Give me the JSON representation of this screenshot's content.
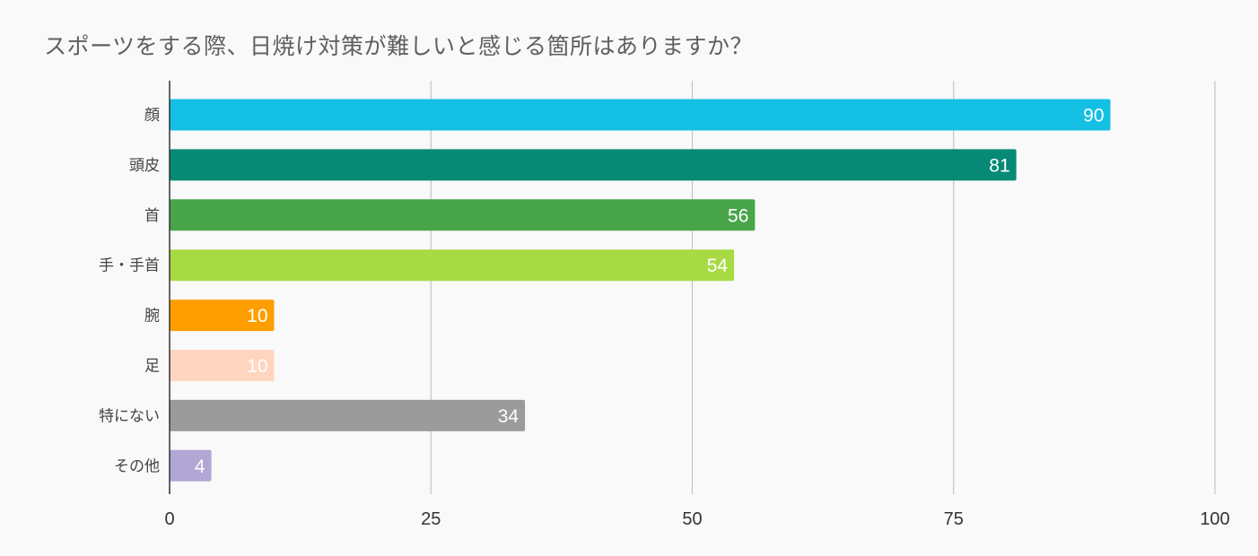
{
  "chart_data": {
    "type": "bar",
    "orientation": "horizontal",
    "title": "スポーツをする際、日焼け対策が難しいと感じる箇所はありますか？",
    "categories": [
      "顔",
      "頭皮",
      "首",
      "手・手首",
      "腕",
      "足",
      "特にない",
      "その他"
    ],
    "values": [
      90,
      81,
      56,
      54,
      10,
      10,
      34,
      4
    ],
    "colors": [
      "#14bfe4",
      "#068a76",
      "#48a54a",
      "#a8da44",
      "#ff9e00",
      "#ffd5c0",
      "#9b9b9b",
      "#b2a6d5"
    ],
    "xlim": [
      0,
      100
    ],
    "ticks": [
      "0",
      "25",
      "50",
      "75",
      "100"
    ],
    "tick_values": [
      0,
      25,
      50,
      75,
      100
    ],
    "grid": "vertical",
    "legend": "none",
    "xlabel": "",
    "ylabel": ""
  }
}
